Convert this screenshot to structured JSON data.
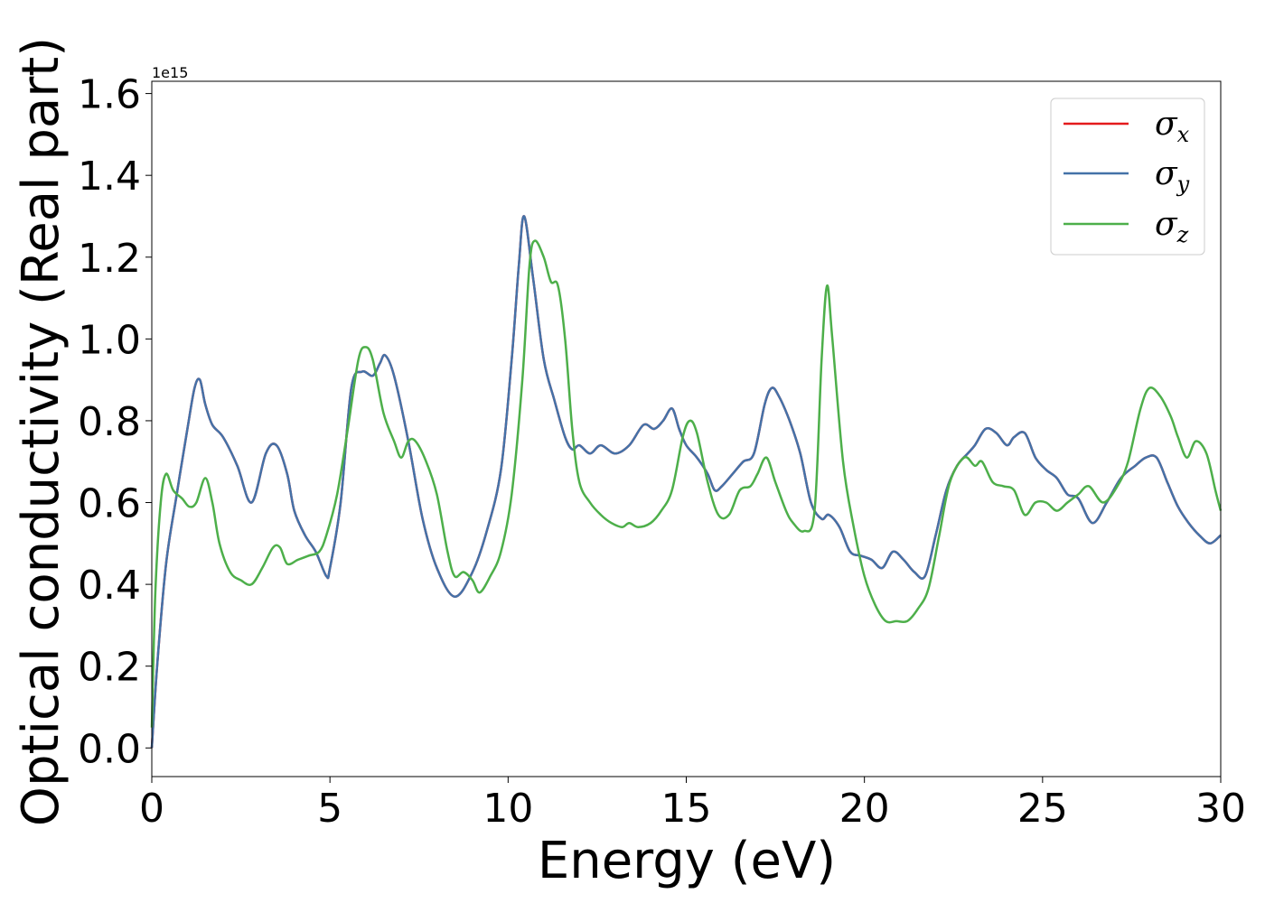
{
  "chart_data": {
    "type": "line",
    "title": "",
    "xlabel": "Energy (eV)",
    "ylabel": "Optical conductivity (Real part)",
    "y_offset_label": "1e15",
    "xlim": [
      0,
      30
    ],
    "ylim": [
      -0.07,
      1.63
    ],
    "xticks": [
      0,
      5,
      10,
      15,
      20,
      25,
      30
    ],
    "yticks": [
      0.0,
      0.2,
      0.4,
      0.6,
      0.8,
      1.0,
      1.2,
      1.4,
      1.6
    ],
    "xtick_labels": [
      "0",
      "5",
      "10",
      "15",
      "20",
      "25",
      "30"
    ],
    "ytick_labels": [
      "0.0",
      "0.2",
      "0.4",
      "0.6",
      "0.8",
      "1.0",
      "1.2",
      "1.4",
      "1.6"
    ],
    "grid": false,
    "legend_position": "top-right",
    "series": [
      {
        "name": "σx",
        "symbol": "σ",
        "subscript": "x",
        "color": "#e41a1c",
        "x": [
          0,
          0.15,
          0.4,
          0.7,
          1.0,
          1.2,
          1.35,
          1.5,
          1.7,
          2.0,
          2.4,
          2.8,
          3.2,
          3.5,
          3.8,
          4.0,
          4.3,
          4.6,
          4.9,
          5.0,
          5.3,
          5.6,
          5.9,
          6.2,
          6.4,
          6.55,
          6.8,
          7.2,
          7.6,
          8.0,
          8.5,
          9.0,
          9.4,
          9.8,
          10.1,
          10.3,
          10.45,
          10.7,
          11.0,
          11.3,
          11.6,
          11.8,
          12.0,
          12.3,
          12.6,
          13.0,
          13.4,
          13.8,
          14.1,
          14.35,
          14.6,
          14.8,
          15.0,
          15.3,
          15.6,
          15.8,
          16.0,
          16.3,
          16.6,
          16.9,
          17.2,
          17.4,
          17.6,
          17.9,
          18.2,
          18.5,
          18.8,
          19.0,
          19.3,
          19.6,
          19.9,
          20.2,
          20.5,
          20.8,
          21.1,
          21.4,
          21.7,
          22.0,
          22.3,
          22.6,
          22.9,
          23.1,
          23.4,
          23.7,
          24.0,
          24.2,
          24.5,
          24.8,
          25.1,
          25.4,
          25.7,
          26.0,
          26.4,
          26.8,
          27.2,
          27.6,
          27.9,
          28.2,
          28.5,
          28.8,
          29.1,
          29.4,
          29.7,
          30.0
        ],
        "values": [
          0.0,
          0.2,
          0.45,
          0.62,
          0.78,
          0.88,
          0.9,
          0.84,
          0.79,
          0.76,
          0.69,
          0.6,
          0.72,
          0.74,
          0.67,
          0.58,
          0.52,
          0.48,
          0.42,
          0.44,
          0.6,
          0.88,
          0.92,
          0.91,
          0.94,
          0.96,
          0.91,
          0.75,
          0.56,
          0.44,
          0.37,
          0.43,
          0.53,
          0.68,
          0.95,
          1.18,
          1.3,
          1.15,
          0.95,
          0.85,
          0.76,
          0.73,
          0.74,
          0.72,
          0.74,
          0.72,
          0.74,
          0.79,
          0.78,
          0.8,
          0.83,
          0.78,
          0.74,
          0.71,
          0.67,
          0.63,
          0.64,
          0.67,
          0.7,
          0.72,
          0.84,
          0.88,
          0.86,
          0.8,
          0.72,
          0.6,
          0.56,
          0.57,
          0.54,
          0.48,
          0.47,
          0.46,
          0.44,
          0.48,
          0.46,
          0.43,
          0.42,
          0.52,
          0.63,
          0.69,
          0.72,
          0.74,
          0.78,
          0.77,
          0.74,
          0.76,
          0.77,
          0.71,
          0.68,
          0.66,
          0.62,
          0.61,
          0.55,
          0.6,
          0.66,
          0.69,
          0.71,
          0.71,
          0.65,
          0.59,
          0.55,
          0.52,
          0.5,
          0.52
        ]
      },
      {
        "name": "σy",
        "symbol": "σ",
        "subscript": "y",
        "color": "#4472a8",
        "x": [
          0,
          0.15,
          0.4,
          0.7,
          1.0,
          1.2,
          1.35,
          1.5,
          1.7,
          2.0,
          2.4,
          2.8,
          3.2,
          3.5,
          3.8,
          4.0,
          4.3,
          4.6,
          4.9,
          5.0,
          5.3,
          5.6,
          5.9,
          6.2,
          6.4,
          6.55,
          6.8,
          7.2,
          7.6,
          8.0,
          8.5,
          9.0,
          9.4,
          9.8,
          10.1,
          10.3,
          10.45,
          10.7,
          11.0,
          11.3,
          11.6,
          11.8,
          12.0,
          12.3,
          12.6,
          13.0,
          13.4,
          13.8,
          14.1,
          14.35,
          14.6,
          14.8,
          15.0,
          15.3,
          15.6,
          15.8,
          16.0,
          16.3,
          16.6,
          16.9,
          17.2,
          17.4,
          17.6,
          17.9,
          18.2,
          18.5,
          18.8,
          19.0,
          19.3,
          19.6,
          19.9,
          20.2,
          20.5,
          20.8,
          21.1,
          21.4,
          21.7,
          22.0,
          22.3,
          22.6,
          22.9,
          23.1,
          23.4,
          23.7,
          24.0,
          24.2,
          24.5,
          24.8,
          25.1,
          25.4,
          25.7,
          26.0,
          26.4,
          26.8,
          27.2,
          27.6,
          27.9,
          28.2,
          28.5,
          28.8,
          29.1,
          29.4,
          29.7,
          30.0
        ],
        "values": [
          0.0,
          0.2,
          0.45,
          0.62,
          0.78,
          0.88,
          0.9,
          0.84,
          0.79,
          0.76,
          0.69,
          0.6,
          0.72,
          0.74,
          0.67,
          0.58,
          0.52,
          0.48,
          0.42,
          0.44,
          0.6,
          0.88,
          0.92,
          0.91,
          0.94,
          0.96,
          0.91,
          0.75,
          0.56,
          0.44,
          0.37,
          0.43,
          0.53,
          0.68,
          0.95,
          1.18,
          1.3,
          1.15,
          0.95,
          0.85,
          0.76,
          0.73,
          0.74,
          0.72,
          0.74,
          0.72,
          0.74,
          0.79,
          0.78,
          0.8,
          0.83,
          0.78,
          0.74,
          0.71,
          0.67,
          0.63,
          0.64,
          0.67,
          0.7,
          0.72,
          0.84,
          0.88,
          0.86,
          0.8,
          0.72,
          0.6,
          0.56,
          0.57,
          0.54,
          0.48,
          0.47,
          0.46,
          0.44,
          0.48,
          0.46,
          0.43,
          0.42,
          0.52,
          0.63,
          0.69,
          0.72,
          0.74,
          0.78,
          0.77,
          0.74,
          0.76,
          0.77,
          0.71,
          0.68,
          0.66,
          0.62,
          0.61,
          0.55,
          0.6,
          0.66,
          0.69,
          0.71,
          0.71,
          0.65,
          0.59,
          0.55,
          0.52,
          0.5,
          0.52
        ]
      },
      {
        "name": "σz",
        "symbol": "σ",
        "subscript": "z",
        "color": "#4daf4a",
        "x": [
          0,
          0.1,
          0.25,
          0.4,
          0.6,
          0.85,
          1.05,
          1.25,
          1.5,
          1.7,
          1.9,
          2.2,
          2.5,
          2.8,
          3.1,
          3.4,
          3.6,
          3.8,
          4.1,
          4.4,
          4.7,
          4.9,
          5.2,
          5.5,
          5.8,
          6.0,
          6.2,
          6.5,
          6.8,
          7.0,
          7.2,
          7.4,
          7.7,
          8.0,
          8.3,
          8.5,
          8.75,
          9.0,
          9.2,
          9.5,
          9.8,
          10.1,
          10.4,
          10.6,
          10.75,
          11.0,
          11.2,
          11.4,
          11.6,
          11.8,
          12.0,
          12.3,
          12.6,
          12.9,
          13.2,
          13.4,
          13.65,
          14.0,
          14.3,
          14.6,
          14.9,
          15.1,
          15.3,
          15.6,
          15.9,
          16.2,
          16.5,
          16.8,
          17.0,
          17.25,
          17.5,
          17.8,
          18.0,
          18.3,
          18.6,
          18.8,
          18.95,
          19.1,
          19.4,
          19.7,
          20.0,
          20.3,
          20.6,
          20.9,
          21.2,
          21.5,
          21.8,
          22.1,
          22.4,
          22.8,
          23.1,
          23.3,
          23.6,
          23.9,
          24.2,
          24.5,
          24.8,
          25.1,
          25.4,
          25.7,
          26.0,
          26.3,
          26.7,
          27.1,
          27.4,
          27.75,
          28.0,
          28.3,
          28.6,
          28.8,
          29.05,
          29.3,
          29.6,
          29.85,
          30.0
        ],
        "values": [
          0.05,
          0.38,
          0.6,
          0.67,
          0.63,
          0.61,
          0.59,
          0.6,
          0.66,
          0.6,
          0.5,
          0.43,
          0.41,
          0.4,
          0.44,
          0.49,
          0.49,
          0.45,
          0.46,
          0.47,
          0.48,
          0.52,
          0.62,
          0.78,
          0.95,
          0.98,
          0.95,
          0.82,
          0.75,
          0.71,
          0.75,
          0.75,
          0.7,
          0.62,
          0.48,
          0.42,
          0.43,
          0.41,
          0.38,
          0.42,
          0.48,
          0.62,
          0.9,
          1.18,
          1.24,
          1.2,
          1.14,
          1.13,
          1.0,
          0.78,
          0.65,
          0.6,
          0.57,
          0.55,
          0.54,
          0.55,
          0.54,
          0.55,
          0.58,
          0.63,
          0.76,
          0.8,
          0.77,
          0.65,
          0.57,
          0.57,
          0.63,
          0.64,
          0.67,
          0.71,
          0.65,
          0.58,
          0.55,
          0.53,
          0.58,
          0.95,
          1.13,
          1.0,
          0.7,
          0.54,
          0.42,
          0.35,
          0.31,
          0.31,
          0.31,
          0.34,
          0.39,
          0.52,
          0.65,
          0.71,
          0.69,
          0.7,
          0.65,
          0.64,
          0.63,
          0.57,
          0.6,
          0.6,
          0.58,
          0.6,
          0.62,
          0.64,
          0.6,
          0.64,
          0.7,
          0.83,
          0.88,
          0.86,
          0.81,
          0.76,
          0.71,
          0.75,
          0.72,
          0.63,
          0.58
        ]
      }
    ]
  }
}
